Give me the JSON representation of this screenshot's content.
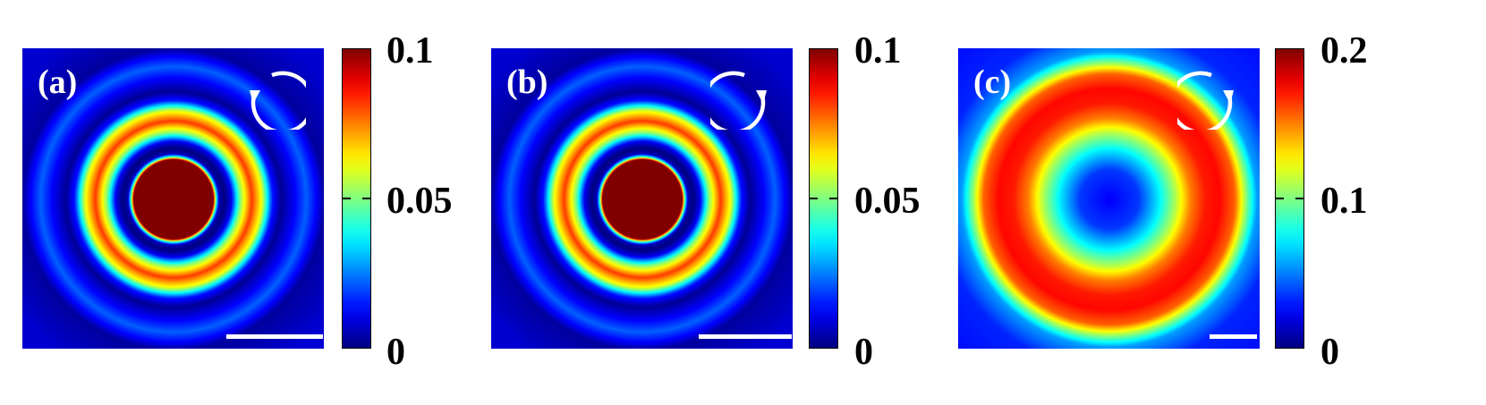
{
  "chart_data": [
    {
      "type": "heatmap",
      "panel_label": "(a)",
      "rotation_arrow": "counterclockwise",
      "colorbar": {
        "ticks": [
          "0.1",
          "0.05",
          "0"
        ],
        "min": 0,
        "max": 0.1,
        "colormap": "jet"
      },
      "radial_profile": [
        [
          0,
          1.0
        ],
        [
          0.27,
          1.0
        ],
        [
          0.285,
          0.5
        ],
        [
          0.31,
          0.05
        ],
        [
          0.345,
          0.0
        ],
        [
          0.39,
          0.1
        ],
        [
          0.45,
          0.5
        ],
        [
          0.53,
          0.82
        ],
        [
          0.6,
          0.6
        ],
        [
          0.67,
          0.15
        ],
        [
          0.73,
          0.02
        ],
        [
          0.82,
          0.12
        ],
        [
          0.9,
          0.22
        ],
        [
          0.97,
          0.12
        ],
        [
          1.02,
          0.03
        ],
        [
          1.3,
          0.08
        ]
      ]
    },
    {
      "type": "heatmap",
      "panel_label": "(b)",
      "rotation_arrow": "clockwise",
      "colorbar": {
        "ticks": [
          "0.1",
          "0.05",
          "0"
        ],
        "min": 0,
        "max": 0.1,
        "colormap": "jet"
      },
      "radial_profile": [
        [
          0,
          1.0
        ],
        [
          0.27,
          1.0
        ],
        [
          0.285,
          0.5
        ],
        [
          0.31,
          0.05
        ],
        [
          0.345,
          0.0
        ],
        [
          0.39,
          0.1
        ],
        [
          0.45,
          0.5
        ],
        [
          0.53,
          0.82
        ],
        [
          0.6,
          0.6
        ],
        [
          0.67,
          0.15
        ],
        [
          0.73,
          0.02
        ],
        [
          0.82,
          0.12
        ],
        [
          0.9,
          0.22
        ],
        [
          0.97,
          0.12
        ],
        [
          1.02,
          0.03
        ],
        [
          1.3,
          0.08
        ]
      ]
    },
    {
      "type": "heatmap",
      "panel_label": "(c)",
      "rotation_arrow": "clockwise",
      "colorbar": {
        "ticks": [
          "0.2",
          "0.1",
          "0"
        ],
        "min": 0,
        "max": 0.2,
        "colormap": "jet"
      },
      "radial_profile": [
        [
          0,
          0.12
        ],
        [
          0.2,
          0.18
        ],
        [
          0.33,
          0.35
        ],
        [
          0.45,
          0.55
        ],
        [
          0.55,
          0.75
        ],
        [
          0.65,
          0.85
        ],
        [
          0.75,
          0.87
        ],
        [
          0.85,
          0.78
        ],
        [
          0.93,
          0.5
        ],
        [
          1.0,
          0.28
        ],
        [
          1.15,
          0.16
        ],
        [
          1.4,
          0.14
        ]
      ]
    }
  ]
}
